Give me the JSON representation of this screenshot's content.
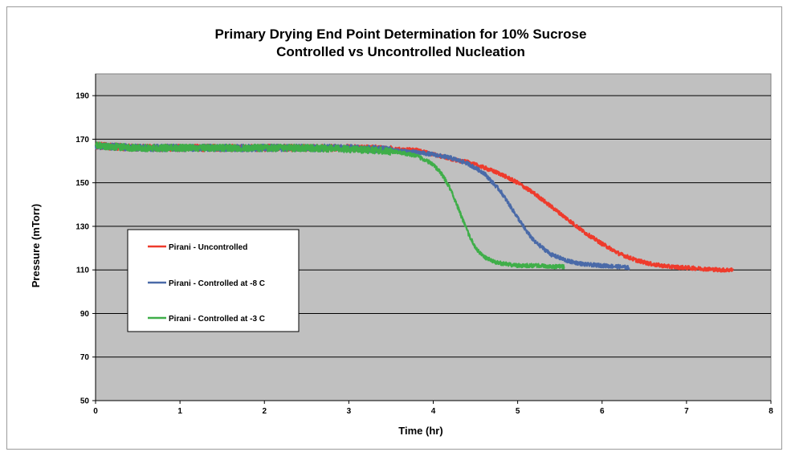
{
  "chart_data": {
    "type": "line",
    "title": "Primary Drying End Point Determination for 10% Sucrose",
    "subtitle": "Controlled vs Uncontrolled Nucleation",
    "xlabel": "Time (hr)",
    "ylabel": "Pressure (mTorr)",
    "xlim": [
      0,
      8
    ],
    "ylim": [
      50,
      200
    ],
    "xticks": [
      0,
      1,
      2,
      3,
      4,
      5,
      6,
      7,
      8
    ],
    "yticks": [
      50,
      70,
      90,
      110,
      130,
      150,
      170,
      190
    ],
    "grid": "horizontal",
    "legend_position": "left-middle",
    "plot_background": "#c0c0c0",
    "series": [
      {
        "name": "Pirani - Uncontrolled",
        "color": "#ee3b2c",
        "x": [
          0,
          0.5,
          1,
          1.5,
          2,
          2.5,
          3,
          3.5,
          3.8,
          4.0,
          4.2,
          4.4,
          4.6,
          4.8,
          5.0,
          5.2,
          5.4,
          5.6,
          5.8,
          6.0,
          6.2,
          6.4,
          6.6,
          6.8,
          7.0,
          7.2,
          7.4,
          7.55
        ],
        "y": [
          167,
          166,
          166,
          166,
          166,
          166,
          166,
          165.5,
          165,
          163,
          161,
          159.5,
          157,
          154,
          150,
          145,
          139,
          133,
          127,
          122,
          117.5,
          114.5,
          112.5,
          111.5,
          111,
          110.5,
          110,
          110
        ]
      },
      {
        "name": "Pirani - Controlled at -8 C",
        "color": "#4a6aa8",
        "x": [
          0,
          0.5,
          1,
          1.5,
          2,
          2.5,
          3,
          3.5,
          3.8,
          4.0,
          4.2,
          4.4,
          4.6,
          4.8,
          4.9,
          5.0,
          5.1,
          5.2,
          5.4,
          5.6,
          5.8,
          6.0,
          6.2,
          6.32
        ],
        "y": [
          167,
          166,
          166,
          166,
          166,
          166,
          166,
          165,
          164,
          163,
          161.5,
          159,
          154.5,
          146,
          140,
          134,
          128,
          123,
          117,
          114,
          112.5,
          112,
          111.5,
          111
        ]
      },
      {
        "name": "Pirani - Controlled at -3 C",
        "color": "#3fae49",
        "x": [
          0,
          0.5,
          1,
          1.5,
          2,
          2.5,
          3,
          3.3,
          3.6,
          3.8,
          4.0,
          4.1,
          4.2,
          4.3,
          4.4,
          4.5,
          4.6,
          4.7,
          4.8,
          5.0,
          5.2,
          5.4,
          5.55
        ],
        "y": [
          167,
          166,
          166,
          166,
          166,
          166,
          165.5,
          165,
          164,
          162.5,
          158.5,
          154,
          147.5,
          138,
          128,
          120,
          116,
          114,
          113,
          112,
          112,
          111.5,
          111.5
        ]
      }
    ]
  }
}
